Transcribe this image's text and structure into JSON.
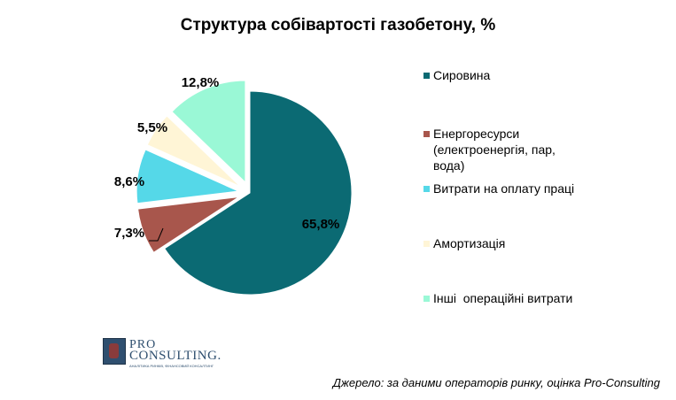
{
  "chart_data": {
    "type": "pie",
    "title": "Структура собівартості газобетону, %",
    "categories": [
      "Сировина",
      "Енергоресурси (електроенергія, пар, вода)",
      "Витрати на оплату праці",
      "Амортизація",
      "Інші  операційні витрати"
    ],
    "values": [
      65.8,
      7.3,
      8.6,
      5.5,
      12.8
    ],
    "data_labels": [
      "65,8%",
      "7,3%",
      "8,6%",
      "5,5%",
      "12,8%"
    ],
    "colors": [
      "#0b6a73",
      "#a8564c",
      "#55d8e8",
      "#fff5d6",
      "#9af8d6"
    ],
    "legend_position": "right"
  },
  "source": "Джерело: за даними операторів ринку, оцінка Pro-Consulting",
  "logo": {
    "pro": "PRO",
    "consulting": "CONSULTING.",
    "tagline": "АНАЛІТИКА РИНКІВ, ФІНАНСОВИЙ КОНСАЛТИНГ"
  }
}
